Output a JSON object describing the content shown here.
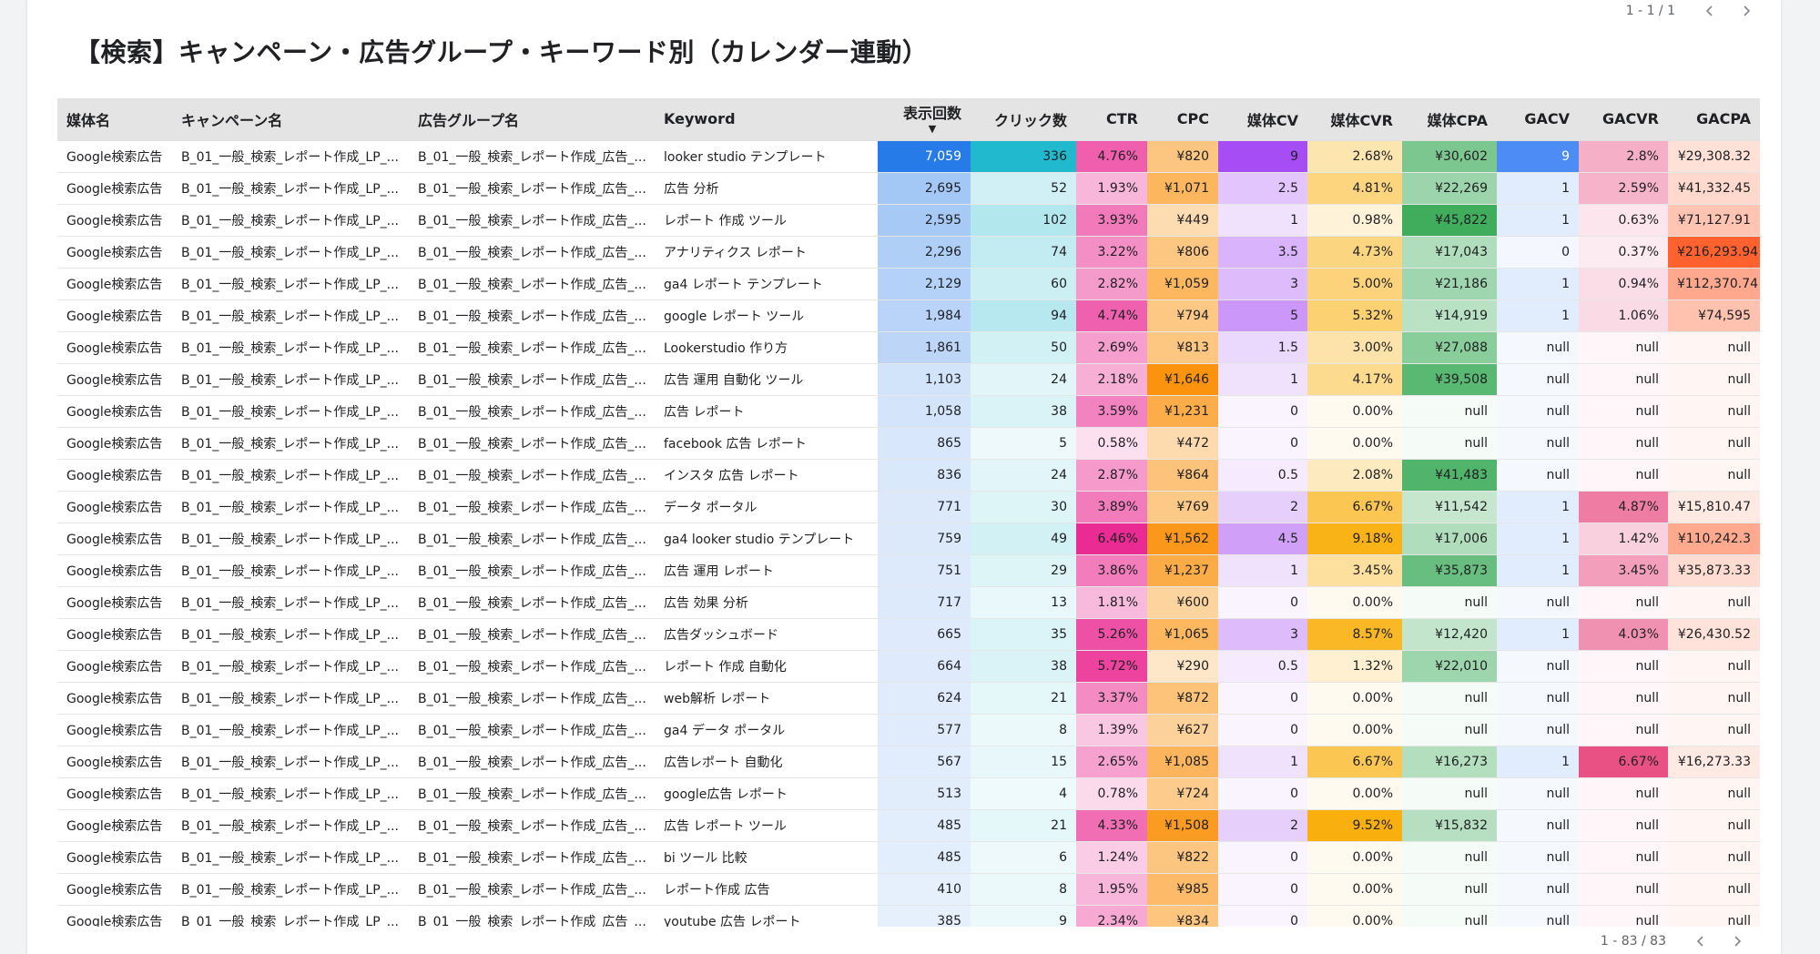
{
  "title": "【検索】キャンペーン・広告グループ・キーワード別（カレンダー連動）",
  "pager_top": "1 - 1 / 1",
  "pager_bottom": "1 - 83 / 83",
  "sort_indicator": "▼",
  "columns": [
    "媒体名",
    "キャンペーン名",
    "広告グループ名",
    "Keyword",
    "表示回数",
    "クリック数",
    "CTR",
    "CPC",
    "媒体CV",
    "媒体CVR",
    "媒体CPA",
    "GACV",
    "GACVR",
    "GACPA"
  ],
  "heat_colors": {
    "impressions": "#1a73e8",
    "clicks": "#12b5cb",
    "ctr": "#e91e8c",
    "cpc": "#fb8c00",
    "media_cv": "#a142f4",
    "media_cvr": "#f9ab00",
    "media_cpa": "#34a853",
    "gacv": "#4285f4",
    "gacvr": "#e8457b",
    "gacpa": "#ff5722"
  },
  "rows": [
    [
      "Google検索広告",
      "B_01_一般_検索_レポート作成_LP_...",
      "B_01_一般_検索_レポート作成_広告_...",
      "looker studio テンプレート",
      "7,059",
      "336",
      "4.76%",
      "¥820",
      "9",
      "2.68%",
      "¥30,602",
      "9",
      "2.8%",
      "¥29,308.32"
    ],
    [
      "Google検索広告",
      "B_01_一般_検索_レポート作成_LP_...",
      "B_01_一般_検索_レポート作成_広告_...",
      "広告 分析",
      "2,695",
      "52",
      "1.93%",
      "¥1,071",
      "2.5",
      "4.81%",
      "¥22,269",
      "1",
      "2.59%",
      "¥41,332.45"
    ],
    [
      "Google検索広告",
      "B_01_一般_検索_レポート作成_LP_...",
      "B_01_一般_検索_レポート作成_広告_...",
      "レポート 作成 ツール",
      "2,595",
      "102",
      "3.93%",
      "¥449",
      "1",
      "0.98%",
      "¥45,822",
      "1",
      "0.63%",
      "¥71,127.91"
    ],
    [
      "Google検索広告",
      "B_01_一般_検索_レポート作成_LP_...",
      "B_01_一般_検索_レポート作成_広告_...",
      "アナリティクス レポート",
      "2,296",
      "74",
      "3.22%",
      "¥806",
      "3.5",
      "4.73%",
      "¥17,043",
      "0",
      "0.37%",
      "¥216,293.94"
    ],
    [
      "Google検索広告",
      "B_01_一般_検索_レポート作成_LP_...",
      "B_01_一般_検索_レポート作成_広告_...",
      "ga4 レポート テンプレート",
      "2,129",
      "60",
      "2.82%",
      "¥1,059",
      "3",
      "5.00%",
      "¥21,186",
      "1",
      "0.94%",
      "¥112,370.74"
    ],
    [
      "Google検索広告",
      "B_01_一般_検索_レポート作成_LP_...",
      "B_01_一般_検索_レポート作成_広告_...",
      "google レポート ツール",
      "1,984",
      "94",
      "4.74%",
      "¥794",
      "5",
      "5.32%",
      "¥14,919",
      "1",
      "1.06%",
      "¥74,595"
    ],
    [
      "Google検索広告",
      "B_01_一般_検索_レポート作成_LP_...",
      "B_01_一般_検索_レポート作成_広告_...",
      "Lookerstudio 作り方",
      "1,861",
      "50",
      "2.69%",
      "¥813",
      "1.5",
      "3.00%",
      "¥27,088",
      "null",
      "null",
      "null"
    ],
    [
      "Google検索広告",
      "B_01_一般_検索_レポート作成_LP_...",
      "B_01_一般_検索_レポート作成_広告_...",
      "広告 運用 自動化 ツール",
      "1,103",
      "24",
      "2.18%",
      "¥1,646",
      "1",
      "4.17%",
      "¥39,508",
      "null",
      "null",
      "null"
    ],
    [
      "Google検索広告",
      "B_01_一般_検索_レポート作成_LP_...",
      "B_01_一般_検索_レポート作成_広告_...",
      "広告 レポート",
      "1,058",
      "38",
      "3.59%",
      "¥1,231",
      "0",
      "0.00%",
      "null",
      "null",
      "null",
      "null"
    ],
    [
      "Google検索広告",
      "B_01_一般_検索_レポート作成_LP_...",
      "B_01_一般_検索_レポート作成_広告_...",
      "facebook 広告 レポート",
      "865",
      "5",
      "0.58%",
      "¥472",
      "0",
      "0.00%",
      "null",
      "null",
      "null",
      "null"
    ],
    [
      "Google検索広告",
      "B_01_一般_検索_レポート作成_LP_...",
      "B_01_一般_検索_レポート作成_広告_...",
      "インスタ 広告 レポート",
      "836",
      "24",
      "2.87%",
      "¥864",
      "0.5",
      "2.08%",
      "¥41,483",
      "null",
      "null",
      "null"
    ],
    [
      "Google検索広告",
      "B_01_一般_検索_レポート作成_LP_...",
      "B_01_一般_検索_レポート作成_広告_...",
      "データ ポータル",
      "771",
      "30",
      "3.89%",
      "¥769",
      "2",
      "6.67%",
      "¥11,542",
      "1",
      "4.87%",
      "¥15,810.47"
    ],
    [
      "Google検索広告",
      "B_01_一般_検索_レポート作成_LP_...",
      "B_01_一般_検索_レポート作成_広告_...",
      "ga4 looker studio テンプレート",
      "759",
      "49",
      "6.46%",
      "¥1,562",
      "4.5",
      "9.18%",
      "¥17,006",
      "1",
      "1.42%",
      "¥110,242.3"
    ],
    [
      "Google検索広告",
      "B_01_一般_検索_レポート作成_LP_...",
      "B_01_一般_検索_レポート作成_広告_...",
      "広告 運用 レポート",
      "751",
      "29",
      "3.86%",
      "¥1,237",
      "1",
      "3.45%",
      "¥35,873",
      "1",
      "3.45%",
      "¥35,873.33"
    ],
    [
      "Google検索広告",
      "B_01_一般_検索_レポート作成_LP_...",
      "B_01_一般_検索_レポート作成_広告_...",
      "広告 効果 分析",
      "717",
      "13",
      "1.81%",
      "¥600",
      "0",
      "0.00%",
      "null",
      "null",
      "null",
      "null"
    ],
    [
      "Google検索広告",
      "B_01_一般_検索_レポート作成_LP_...",
      "B_01_一般_検索_レポート作成_広告_...",
      "広告ダッシュボード",
      "665",
      "35",
      "5.26%",
      "¥1,065",
      "3",
      "8.57%",
      "¥12,420",
      "1",
      "4.03%",
      "¥26,430.52"
    ],
    [
      "Google検索広告",
      "B_01_一般_検索_レポート作成_LP_...",
      "B_01_一般_検索_レポート作成_広告_...",
      "レポート 作成 自動化",
      "664",
      "38",
      "5.72%",
      "¥290",
      "0.5",
      "1.32%",
      "¥22,010",
      "null",
      "null",
      "null"
    ],
    [
      "Google検索広告",
      "B_01_一般_検索_レポート作成_LP_...",
      "B_01_一般_検索_レポート作成_広告_...",
      "web解析 レポート",
      "624",
      "21",
      "3.37%",
      "¥872",
      "0",
      "0.00%",
      "null",
      "null",
      "null",
      "null"
    ],
    [
      "Google検索広告",
      "B_01_一般_検索_レポート作成_LP_...",
      "B_01_一般_検索_レポート作成_広告_...",
      "ga4 データ ポータル",
      "577",
      "8",
      "1.39%",
      "¥627",
      "0",
      "0.00%",
      "null",
      "null",
      "null",
      "null"
    ],
    [
      "Google検索広告",
      "B_01_一般_検索_レポート作成_LP_...",
      "B_01_一般_検索_レポート作成_広告_...",
      "広告レポート 自動化",
      "567",
      "15",
      "2.65%",
      "¥1,085",
      "1",
      "6.67%",
      "¥16,273",
      "1",
      "6.67%",
      "¥16,273.33"
    ],
    [
      "Google検索広告",
      "B_01_一般_検索_レポート作成_LP_...",
      "B_01_一般_検索_レポート作成_広告_...",
      "google広告 レポート",
      "513",
      "4",
      "0.78%",
      "¥724",
      "0",
      "0.00%",
      "null",
      "null",
      "null",
      "null"
    ],
    [
      "Google検索広告",
      "B_01_一般_検索_レポート作成_LP_...",
      "B_01_一般_検索_レポート作成_広告_...",
      "広告 レポート ツール",
      "485",
      "21",
      "4.33%",
      "¥1,508",
      "2",
      "9.52%",
      "¥15,832",
      "null",
      "null",
      "null"
    ],
    [
      "Google検索広告",
      "B_01_一般_検索_レポート作成_LP_...",
      "B_01_一般_検索_レポート作成_広告_...",
      "bi ツール 比較",
      "485",
      "6",
      "1.24%",
      "¥822",
      "0",
      "0.00%",
      "null",
      "null",
      "null",
      "null"
    ],
    [
      "Google検索広告",
      "B_01_一般_検索_レポート作成_LP_...",
      "B_01_一般_検索_レポート作成_広告_...",
      "レポート作成 広告",
      "410",
      "8",
      "1.95%",
      "¥985",
      "0",
      "0.00%",
      "null",
      "null",
      "null",
      "null"
    ],
    [
      "Google検索広告",
      "B_01_一般_検索_レポート作成_LP_...",
      "B_01_一般_検索_レポート作成_広告_...",
      "youtube 広告 レポート",
      "385",
      "9",
      "2.34%",
      "¥834",
      "0",
      "0.00%",
      "null",
      "null",
      "null",
      "null"
    ]
  ]
}
